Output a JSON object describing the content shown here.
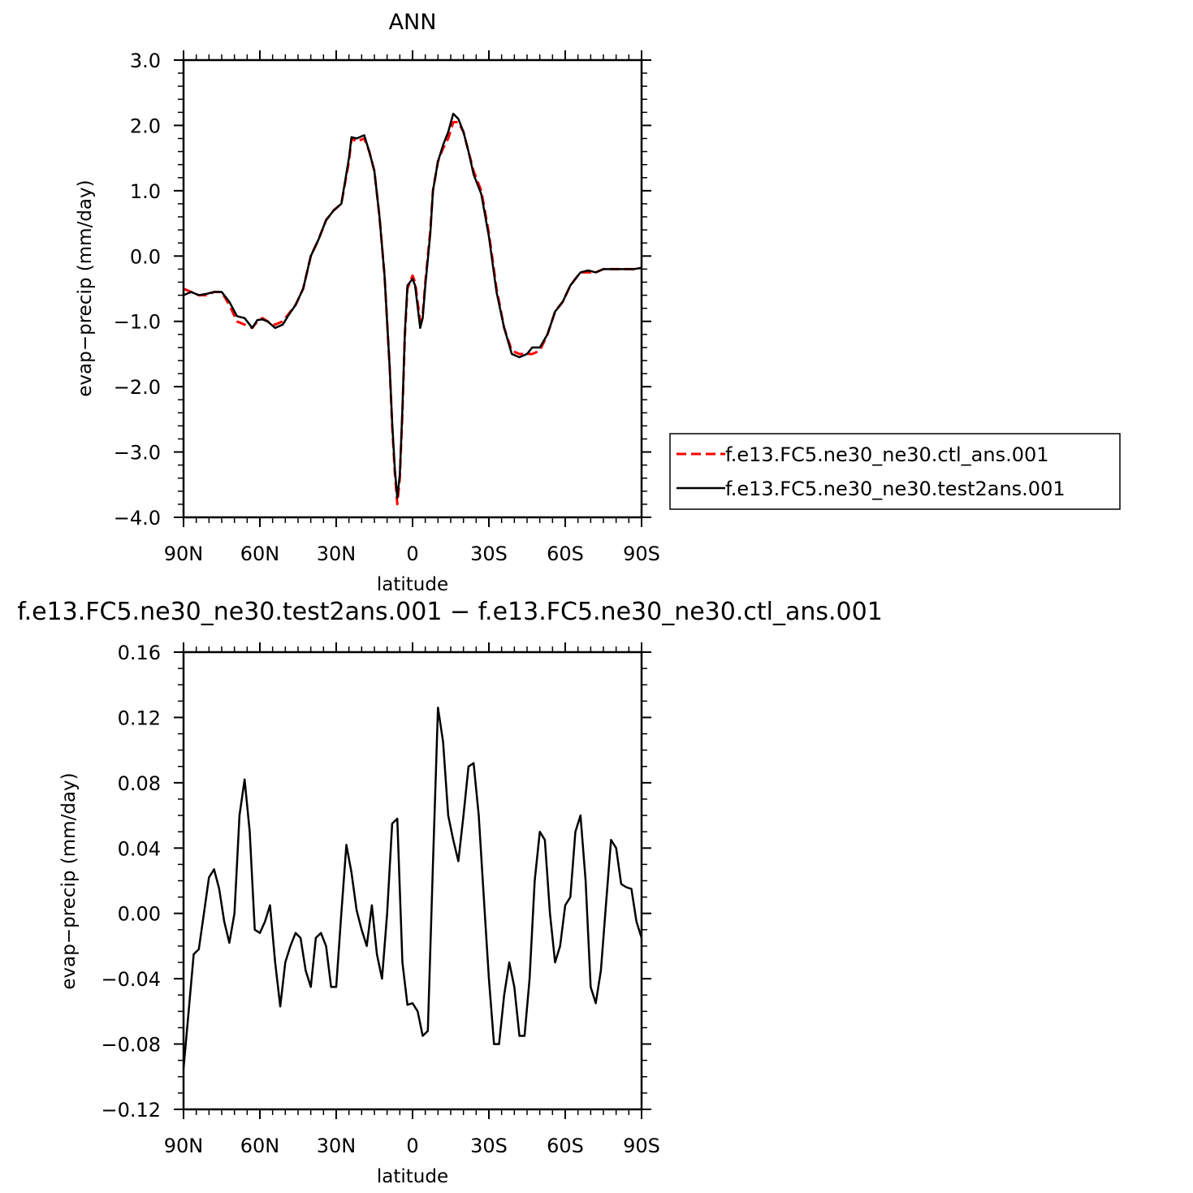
{
  "chart_data": [
    {
      "type": "line",
      "title": "ANN",
      "xlabel": "latitude",
      "ylabel": "evap−precip (mm/day)",
      "xlim": [
        90,
        -90
      ],
      "ylim": [
        -4.0,
        3.0
      ],
      "x_ticks": [
        90,
        60,
        30,
        0,
        -30,
        -60,
        -90
      ],
      "x_tick_labels": [
        "90N",
        "60N",
        "30N",
        "0",
        "30S",
        "60S",
        "90S"
      ],
      "y_ticks": [
        3,
        2,
        1,
        0,
        -1,
        -2,
        -3,
        -4
      ],
      "y_tick_labels": [
        "3.0",
        "2.0",
        "1.0",
        "0.0",
        "−1.0",
        "−2.0",
        "−3.0",
        "−4.0"
      ],
      "grid": false,
      "legend_position": "right",
      "series": [
        {
          "name": "f.e13.FC5.ne30_ne30.ctl_ans.001",
          "color": "#ff0000",
          "dash": "dashed",
          "x": [
            90,
            87,
            84,
            81,
            78,
            75,
            72,
            69,
            66,
            63,
            61,
            59,
            57,
            54,
            51,
            49,
            46,
            43,
            40,
            37,
            34,
            31,
            28,
            25,
            24,
            22,
            19,
            17,
            15,
            13,
            11,
            9,
            8,
            7,
            6,
            5,
            4,
            3,
            2,
            0,
            -1,
            -3,
            -4,
            -5,
            -7,
            -8,
            -10,
            -12,
            -14,
            -16,
            -18,
            -20,
            -22,
            -24,
            -27,
            -30,
            -33,
            -36,
            -39,
            -42,
            -45,
            -47,
            -50,
            -53,
            -56,
            -59,
            -62,
            -64,
            -66,
            -69,
            -72,
            -75,
            -78,
            -81,
            -84,
            -87,
            -90
          ],
          "values": [
            -0.5,
            -0.55,
            -0.6,
            -0.6,
            -0.55,
            -0.55,
            -0.75,
            -1.0,
            -1.05,
            -1.1,
            -1.0,
            -0.95,
            -1.0,
            -1.05,
            -1.0,
            -0.9,
            -0.75,
            -0.5,
            0.0,
            0.25,
            0.55,
            0.7,
            0.8,
            1.45,
            1.8,
            1.75,
            1.8,
            1.6,
            1.3,
            0.6,
            -0.3,
            -1.7,
            -2.6,
            -3.3,
            -3.8,
            -3.4,
            -2.4,
            -1.2,
            -0.5,
            -0.3,
            -0.4,
            -1.0,
            -0.9,
            -0.4,
            0.4,
            1.0,
            1.45,
            1.65,
            1.8,
            2.05,
            2.05,
            1.9,
            1.6,
            1.3,
            1.0,
            0.35,
            -0.5,
            -1.1,
            -1.45,
            -1.5,
            -1.5,
            -1.5,
            -1.45,
            -1.2,
            -0.85,
            -0.7,
            -0.45,
            -0.35,
            -0.25,
            -0.25,
            -0.25,
            -0.2,
            -0.2,
            -0.2,
            -0.2,
            -0.2,
            -0.18
          ]
        },
        {
          "name": "f.e13.FC5.ne30_ne30.test2ans.001",
          "color": "#000000",
          "dash": "solid",
          "x": [
            90,
            87,
            84,
            81,
            78,
            75,
            72,
            69,
            66,
            63,
            61,
            59,
            57,
            54,
            51,
            49,
            46,
            43,
            40,
            37,
            34,
            31,
            28,
            25,
            24,
            22,
            19,
            17,
            15,
            13,
            11,
            9,
            8,
            7,
            6,
            5,
            4,
            3,
            2,
            0,
            -1,
            -3,
            -4,
            -5,
            -7,
            -8,
            -10,
            -12,
            -14,
            -16,
            -18,
            -20,
            -22,
            -24,
            -27,
            -30,
            -33,
            -36,
            -39,
            -42,
            -45,
            -47,
            -50,
            -53,
            -56,
            -59,
            -62,
            -64,
            -66,
            -69,
            -72,
            -75,
            -78,
            -81,
            -84,
            -87,
            -90
          ],
          "values": [
            -0.6,
            -0.55,
            -0.6,
            -0.58,
            -0.55,
            -0.55,
            -0.7,
            -0.92,
            -0.95,
            -1.1,
            -0.98,
            -0.97,
            -1.0,
            -1.1,
            -1.05,
            -0.92,
            -0.75,
            -0.5,
            0.0,
            0.25,
            0.55,
            0.7,
            0.8,
            1.5,
            1.82,
            1.8,
            1.85,
            1.6,
            1.3,
            0.6,
            -0.3,
            -1.7,
            -2.55,
            -3.25,
            -3.7,
            -3.35,
            -2.35,
            -1.15,
            -0.45,
            -0.35,
            -0.45,
            -1.1,
            -0.95,
            -0.45,
            0.35,
            1.0,
            1.45,
            1.7,
            1.9,
            2.18,
            2.1,
            1.9,
            1.6,
            1.25,
            0.95,
            0.3,
            -0.55,
            -1.1,
            -1.5,
            -1.55,
            -1.5,
            -1.4,
            -1.4,
            -1.2,
            -0.85,
            -0.7,
            -0.45,
            -0.35,
            -0.25,
            -0.22,
            -0.25,
            -0.2,
            -0.2,
            -0.2,
            -0.2,
            -0.2,
            -0.18
          ]
        }
      ]
    },
    {
      "type": "line",
      "title": "f.e13.FC5.ne30_ne30.test2ans.001  −  f.e13.FC5.ne30_ne30.ctl_ans.001",
      "xlabel": "latitude",
      "ylabel": "evap−precip (mm/day)",
      "xlim": [
        90,
        -90
      ],
      "ylim": [
        -0.12,
        0.16
      ],
      "x_ticks": [
        90,
        60,
        30,
        0,
        -30,
        -60,
        -90
      ],
      "x_tick_labels": [
        "90N",
        "60N",
        "30N",
        "0",
        "30S",
        "60S",
        "90S"
      ],
      "y_ticks": [
        0.16,
        0.12,
        0.08,
        0.04,
        0.0,
        -0.04,
        -0.08,
        -0.12
      ],
      "y_tick_labels": [
        "0.16",
        "0.12",
        "0.08",
        "0.04",
        "0.00",
        "−0.04",
        "−0.08",
        "−0.12"
      ],
      "grid": false,
      "series": [
        {
          "color": "#000000",
          "dash": "solid",
          "x": [
            90,
            88,
            86,
            84,
            82,
            80,
            78,
            76,
            74,
            72,
            70,
            68,
            66,
            64,
            62,
            60,
            58,
            56,
            54,
            52,
            50,
            48,
            46,
            44,
            42,
            40,
            38,
            36,
            34,
            32,
            30,
            28,
            26,
            24,
            22,
            20,
            18,
            16,
            14,
            12,
            10,
            8,
            6,
            4,
            2,
            0,
            -2,
            -4,
            -6,
            -8,
            -10,
            -12,
            -14,
            -16,
            -18,
            -20,
            -22,
            -24,
            -26,
            -28,
            -30,
            -32,
            -34,
            -36,
            -38,
            -40,
            -42,
            -44,
            -46,
            -48,
            -50,
            -52,
            -54,
            -56,
            -58,
            -60,
            -62,
            -64,
            -66,
            -68,
            -70,
            -72,
            -74,
            -76,
            -78,
            -80,
            -82,
            -84,
            -86,
            -88,
            -90
          ],
          "values": [
            -0.095,
            -0.06,
            -0.025,
            -0.022,
            0.0,
            0.022,
            0.027,
            0.015,
            -0.005,
            -0.018,
            0.0,
            0.06,
            0.082,
            0.05,
            -0.01,
            -0.012,
            -0.005,
            0.005,
            -0.03,
            -0.057,
            -0.03,
            -0.02,
            -0.012,
            -0.015,
            -0.035,
            -0.045,
            -0.015,
            -0.012,
            -0.02,
            -0.045,
            -0.045,
            0.0,
            0.042,
            0.025,
            0.002,
            -0.01,
            -0.02,
            0.005,
            -0.025,
            -0.04,
            0.0,
            0.055,
            0.058,
            -0.03,
            -0.056,
            -0.055,
            -0.06,
            -0.075,
            -0.072,
            0.03,
            0.126,
            0.105,
            0.06,
            0.045,
            0.032,
            0.06,
            0.09,
            0.092,
            0.06,
            0.01,
            -0.04,
            -0.08,
            -0.08,
            -0.05,
            -0.03,
            -0.045,
            -0.075,
            -0.075,
            -0.04,
            0.02,
            0.05,
            0.045,
            0.0,
            -0.03,
            -0.02,
            0.005,
            0.01,
            0.05,
            0.06,
            0.02,
            -0.045,
            -0.055,
            -0.035,
            0.005,
            0.045,
            0.04,
            0.018,
            0.016,
            0.015,
            -0.005,
            -0.015
          ]
        }
      ]
    }
  ]
}
